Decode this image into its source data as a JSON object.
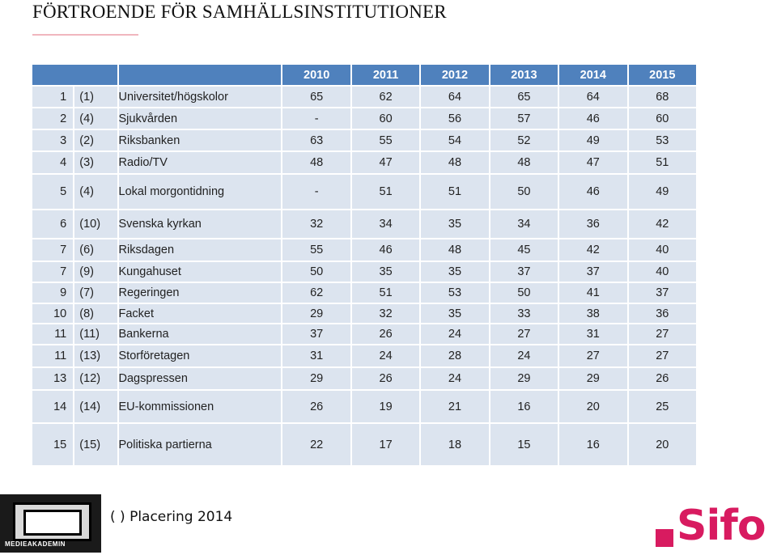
{
  "page": {
    "title": "FÖRTROENDE FÖR SAMHÄLLSINSTITUTIONER"
  },
  "table": {
    "years": [
      "2010",
      "2011",
      "2012",
      "2013",
      "2014",
      "2015"
    ],
    "rows": [
      {
        "rank": "1",
        "prev": "(1)",
        "name": "Universitet/högskolor",
        "values": [
          "65",
          "62",
          "64",
          "65",
          "64",
          "68"
        ]
      },
      {
        "rank": "2",
        "prev": "(4)",
        "name": "Sjukvården",
        "values": [
          "-",
          "60",
          "56",
          "57",
          "46",
          "60"
        ]
      },
      {
        "rank": "3",
        "prev": "(2)",
        "name": "Riksbanken",
        "values": [
          "63",
          "55",
          "54",
          "52",
          "49",
          "53"
        ]
      },
      {
        "rank": "4",
        "prev": "(3)",
        "name": "Radio/TV",
        "values": [
          "48",
          "47",
          "48",
          "48",
          "47",
          "51"
        ]
      },
      {
        "rank": "5",
        "prev": "(4)",
        "name": "Lokal morgontidning",
        "values": [
          "-",
          "51",
          "51",
          "50",
          "46",
          "49"
        ]
      },
      {
        "rank": "6",
        "prev": "(10)",
        "name": "Svenska kyrkan",
        "values": [
          "32",
          "34",
          "35",
          "34",
          "36",
          "42"
        ]
      },
      {
        "rank": "7",
        "prev": "(6)",
        "name": "Riksdagen",
        "values": [
          "55",
          "46",
          "48",
          "45",
          "42",
          "40"
        ]
      },
      {
        "rank": "7",
        "prev": "(9)",
        "name": "Kungahuset",
        "values": [
          "50",
          "35",
          "35",
          "37",
          "37",
          "40"
        ]
      },
      {
        "rank": "9",
        "prev": "(7)",
        "name": "Regeringen",
        "values": [
          "62",
          "51",
          "53",
          "50",
          "41",
          "37"
        ]
      },
      {
        "rank": "10",
        "prev": "(8)",
        "name": "Facket",
        "values": [
          "29",
          "32",
          "35",
          "33",
          "38",
          "36"
        ]
      },
      {
        "rank": "11",
        "prev": "(11)",
        "name": "Bankerna",
        "values": [
          "37",
          "26",
          "24",
          "27",
          "31",
          "27"
        ]
      },
      {
        "rank": "11",
        "prev": "(13)",
        "name": "Storföretagen",
        "values": [
          "31",
          "24",
          "28",
          "24",
          "27",
          "27"
        ]
      },
      {
        "rank": "13",
        "prev": "(12)",
        "name": "Dagspressen",
        "values": [
          "29",
          "26",
          "24",
          "29",
          "29",
          "26"
        ]
      },
      {
        "rank": "14",
        "prev": "(14)",
        "name": "EU-kommissionen",
        "values": [
          "26",
          "19",
          "21",
          "16",
          "20",
          "25"
        ]
      },
      {
        "rank": "15",
        "prev": "(15)",
        "name": "Politiska partierna",
        "values": [
          "22",
          "17",
          "18",
          "15",
          "16",
          "20"
        ]
      }
    ]
  },
  "footer": {
    "legend": "(  ) Placering 2014",
    "left_logo_text": "MEDIEAKADEMIN",
    "right_logo_text": "Sifo"
  },
  "colors": {
    "header": "#4f81bd",
    "row": "#dce4ef",
    "brand": "#d81b60"
  }
}
